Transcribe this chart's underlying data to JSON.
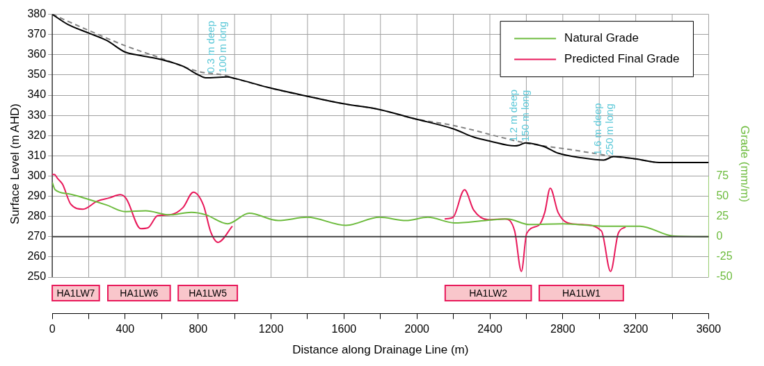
{
  "chart_data": {
    "type": "line",
    "xlabel": "Distance along Drainage Line (m)",
    "ylabel": "Surface Level (m AHD)",
    "y2label": "Grade (mm/m)",
    "xlim": [
      0,
      3600
    ],
    "xticks": [
      0,
      {
        "value": 200,
        "label": null
      },
      400,
      {
        "value": 600,
        "label": null
      },
      800,
      {
        "value": 1000,
        "label": null
      },
      1200,
      {
        "value": 1400,
        "label": null
      },
      1600,
      {
        "value": 1800,
        "label": null
      },
      2000,
      {
        "value": 2200,
        "label": null
      },
      2400,
      {
        "value": 2600,
        "label": null
      },
      2800,
      {
        "value": 3000,
        "label": null
      },
      3200,
      {
        "value": 3400,
        "label": null
      },
      3600
    ],
    "ylim": [
      232,
      380
    ],
    "yticks": [
      250,
      260,
      270,
      280,
      290,
      300,
      310,
      320,
      330,
      340,
      350,
      360,
      370,
      380
    ],
    "y2lim": [
      -95,
      275
    ],
    "y2ticks": [
      -50,
      -25,
      0,
      25,
      50,
      75
    ],
    "grid": true,
    "legend": "top right",
    "marker": "none",
    "series": [
      {
        "color": "#000000",
        "x": [
          0,
          87,
          201,
          300,
          400,
          485,
          603,
          717,
          802,
          841,
          960,
          1000,
          1198,
          1397,
          1595,
          1794,
          1980,
          2205,
          2310,
          2404,
          2536,
          2562,
          2595,
          2694,
          2774,
          2905,
          3024,
          3078,
          3197,
          3329,
          3600
        ],
        "values": [
          380,
          374.9,
          370.7,
          367,
          361.3,
          359.6,
          357.5,
          354.3,
          350,
          348.6,
          349,
          348.3,
          343.5,
          339.5,
          335.8,
          332.9,
          328.5,
          323.2,
          319.3,
          317.2,
          314.9,
          315.3,
          316.4,
          314.7,
          311.3,
          309,
          307.9,
          309.6,
          308.5,
          306.7,
          306.7
        ]
      },
      {
        "color": "#808080",
        "line_style": "dashed",
        "x": [
          0,
          201,
          405,
          591,
          802,
          936,
          1000,
          1198,
          1397,
          1595,
          1794,
          1980,
          2205,
          2587,
          2694,
          2840,
          3038,
          3078,
          3197,
          3329,
          3600
        ],
        "values": [
          380,
          372,
          364.3,
          358.5,
          351.7,
          350,
          348.3,
          343.5,
          339.5,
          335.8,
          332.9,
          328.5,
          324.9,
          316.5,
          314.9,
          313.1,
          310.2,
          309.6,
          308.5,
          306.7,
          306.7
        ]
      },
      {
        "name": "Natural Grade",
        "color": "#6cbb3c",
        "axis": "y2",
        "x": [
          0,
          16,
          89,
          201,
          300,
          400,
          512,
          644,
          763,
          843,
          962,
          1080,
          1239,
          1398,
          1610,
          1795,
          1940,
          2060,
          2205,
          2377,
          2496,
          2615,
          2800,
          3038,
          3223,
          3402,
          3600
        ],
        "values": [
          67,
          58,
          53,
          46,
          39,
          31,
          32,
          27,
          30,
          27,
          16,
          29,
          20,
          24,
          14,
          24,
          20,
          24,
          17,
          20,
          22,
          15,
          16,
          13,
          13,
          1,
          0
        ]
      },
      {
        "name": "Predicted Final Grade",
        "color": "#e8185a",
        "axis": "y2",
        "x": [
          0,
          12,
          29,
          56,
          102,
          168,
          247,
          313,
          373,
          406,
          485,
          525,
          578,
          644,
          717,
          774,
          829,
          869,
          909,
          988,
          1080,
          1239,
          1398,
          1610,
          1795,
          1940,
          2060,
          2152,
          2198,
          2261,
          2311,
          2390,
          2483,
          2536,
          2573,
          2602,
          2668,
          2701,
          2731,
          2774,
          2827,
          2906,
          3012,
          3062,
          3104,
          3144
        ],
        "values": [
          77,
          77,
          72,
          65,
          40,
          34,
          44,
          48,
          52,
          47,
          10,
          11,
          26,
          27,
          36,
          55,
          39,
          6,
          -7,
          13,
          null,
          null,
          null,
          null,
          null,
          null,
          null,
          22,
          24,
          58,
          33,
          21,
          22,
          7,
          -43,
          4,
          14,
          30,
          60,
          30,
          17,
          15,
          7,
          -43,
          4,
          12
        ]
      }
    ],
    "ref_lines": [
      {
        "axis": "y2",
        "value": 0,
        "color": "#404040"
      }
    ],
    "bands": [
      {
        "axis": "x",
        "from": 0,
        "to": 258,
        "label": "HA1LW7",
        "color": "#f9c6cb"
      },
      {
        "axis": "x",
        "from": 305,
        "to": 647,
        "label": "HA1LW6",
        "color": "#f9c6cb"
      },
      {
        "axis": "x",
        "from": 691,
        "to": 1015,
        "label": "HA1LW5",
        "color": "#f9c6cb"
      },
      {
        "axis": "x",
        "from": 2155,
        "to": 2627,
        "label": "HA1LW2",
        "color": "#f9c6cb"
      },
      {
        "axis": "x",
        "from": 2671,
        "to": 3132,
        "label": "HA1LW1",
        "color": "#f9c6cb"
      }
    ],
    "annotations": [
      {
        "text": "0.3 m deep\n100 m long",
        "x": 905,
        "y": 351
      },
      {
        "text": "1.2 m deep\n150 m long",
        "x": 2567,
        "y": 317
      },
      {
        "text": "1.6 m deep\n250 m long",
        "x": 3028,
        "y": 310.3
      }
    ]
  }
}
